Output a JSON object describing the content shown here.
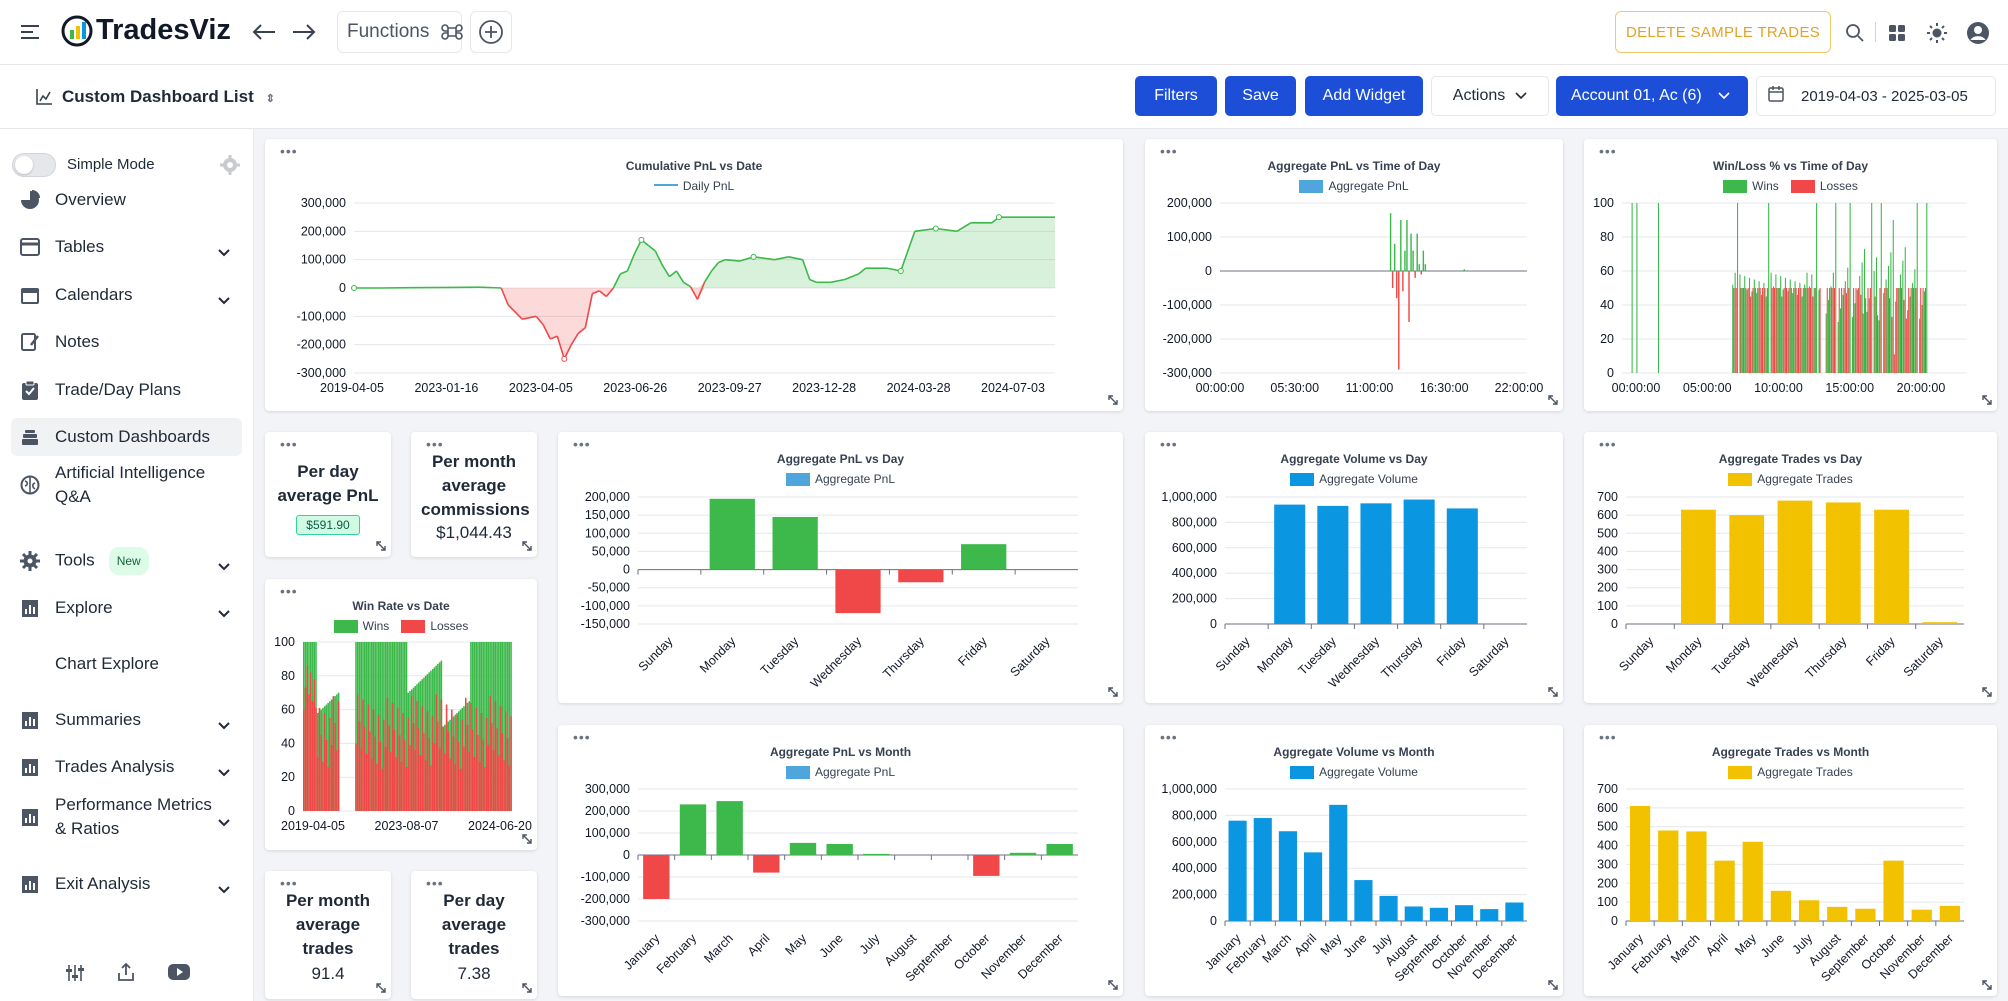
{
  "app": {
    "name": "TradesViz",
    "functions_label": "Functions",
    "delete_label": "DELETE SAMPLE TRADES"
  },
  "toolbar": {
    "title": "Custom Dashboard List",
    "filters": "Filters",
    "save": "Save",
    "add_widget": "Add Widget",
    "actions": "Actions",
    "account": "Account 01, Ac⁣ (6)",
    "date_range": "2019-04-03 - 2025-03-05"
  },
  "colors": {
    "brand_blue": "#1d4ed8",
    "green": "#3cb94a",
    "red": "#f04848",
    "blue": "#0a96e0",
    "yellow": "#f2c200"
  },
  "sidebar": {
    "simple_mode": "Simple Mode",
    "items": [
      {
        "label": "Overview",
        "icon": "pie-chart-icon"
      },
      {
        "label": "Tables",
        "icon": "table-icon"
      },
      {
        "label": "Calendars",
        "icon": "calendar-icon"
      },
      {
        "label": "Notes",
        "icon": "notes-icon"
      },
      {
        "label": "Trade/Day Plans",
        "icon": "clipboard-icon"
      },
      {
        "label": "Custom Dashboards",
        "icon": "layers-icon"
      },
      {
        "label": "Artificial Intelligence Q&A",
        "icon": "brain-icon"
      },
      {
        "label": "Tools",
        "icon": "gear-icon",
        "badge": "New"
      },
      {
        "label": "Explore",
        "icon": "bar-chart-icon"
      },
      {
        "label": "Chart Explore",
        "icon": ""
      },
      {
        "label": "Summaries",
        "icon": "bar-chart-icon"
      },
      {
        "label": "Trades Analysis",
        "icon": "bar-chart-icon"
      },
      {
        "label": "Performance Metrics & Ratios",
        "icon": "bar-chart-icon"
      },
      {
        "label": "Exit Analysis",
        "icon": "bar-chart-icon"
      }
    ]
  },
  "widgets": {
    "per_day_pnl": {
      "label": "Per day average PnL",
      "value": "$591.90"
    },
    "per_month_comm": {
      "label": "Per month average commissions",
      "value": "$1,044.43"
    },
    "per_month_trades": {
      "label": "Per month average trades",
      "value": "91.4"
    },
    "per_day_trades": {
      "label": "Per day average trades",
      "value": "7.38"
    }
  },
  "chart_data": [
    {
      "id": "cum",
      "type": "area",
      "title": "Cumulative PnL vs Date",
      "legend": [
        "Daily PnL"
      ],
      "x_ticks": [
        "2019-04-05",
        "2023-01-16",
        "2023-04-05",
        "2023-06-26",
        "2023-09-27",
        "2023-12-28",
        "2024-03-28",
        "2024-07-03"
      ],
      "y_ticks": [
        "300,000",
        "200,000",
        "100,000",
        "0",
        "-100,000",
        "-200,000",
        "-300,000"
      ],
      "ylim": [
        -300000,
        300000
      ],
      "points": [
        [
          0,
          0
        ],
        [
          4,
          0
        ],
        [
          8,
          1000
        ],
        [
          14,
          2000
        ],
        [
          18,
          3000
        ],
        [
          21,
          0
        ],
        [
          22,
          -60000
        ],
        [
          24,
          -110000
        ],
        [
          26,
          -100000
        ],
        [
          27,
          -130000
        ],
        [
          28,
          -180000
        ],
        [
          29,
          -170000
        ],
        [
          30,
          -250000
        ],
        [
          31,
          -200000
        ],
        [
          32,
          -160000
        ],
        [
          33,
          -140000
        ],
        [
          34,
          -20000
        ],
        [
          35,
          -10000
        ],
        [
          36,
          -30000
        ],
        [
          37,
          0
        ],
        [
          38,
          50000
        ],
        [
          39,
          60000
        ],
        [
          40,
          120000
        ],
        [
          41,
          170000
        ],
        [
          42,
          150000
        ],
        [
          43,
          130000
        ],
        [
          44,
          80000
        ],
        [
          45,
          40000
        ],
        [
          46,
          60000
        ],
        [
          47,
          20000
        ],
        [
          48,
          5000
        ],
        [
          49,
          -40000
        ],
        [
          50,
          20000
        ],
        [
          51,
          60000
        ],
        [
          52,
          90000
        ],
        [
          53,
          100000
        ],
        [
          55,
          95000
        ],
        [
          57,
          110000
        ],
        [
          60,
          100000
        ],
        [
          62,
          110000
        ],
        [
          64,
          100000
        ],
        [
          65,
          30000
        ],
        [
          66,
          20000
        ],
        [
          68,
          20000
        ],
        [
          70,
          30000
        ],
        [
          72,
          50000
        ],
        [
          73,
          70000
        ],
        [
          76,
          70000
        ],
        [
          78,
          60000
        ],
        [
          80,
          200000
        ],
        [
          83,
          210000
        ],
        [
          86,
          200000
        ],
        [
          88,
          230000
        ],
        [
          91,
          230000
        ],
        [
          92,
          250000
        ],
        [
          100,
          250000
        ]
      ]
    },
    {
      "id": "pnl_tod",
      "type": "bar",
      "title": "Aggregate PnL vs Time of Day",
      "legend": [
        "Aggregate PnL"
      ],
      "x_ticks": [
        "00:00:00",
        "05:30:00",
        "11:00:00",
        "16:30:00",
        "22:00:00"
      ],
      "y_ticks": [
        "200,000",
        "100,000",
        "0",
        "-100,000",
        "-200,000",
        "-300,000"
      ],
      "ylim": [
        -300000,
        200000
      ],
      "values": [
        0,
        0,
        0,
        0,
        0,
        0,
        0,
        0,
        0,
        0,
        0,
        0,
        0,
        0,
        0,
        0,
        0,
        0,
        0,
        0,
        0,
        0,
        0,
        0,
        0,
        0,
        0,
        0,
        0,
        0,
        0,
        0,
        0,
        0,
        0,
        0,
        0,
        0,
        0,
        0,
        0,
        0,
        0,
        0,
        0,
        0,
        0,
        0,
        0,
        0,
        0,
        0,
        0,
        0,
        0,
        0,
        0,
        0,
        0,
        0,
        0,
        0,
        0,
        0,
        0,
        0,
        0,
        0,
        0,
        0,
        0,
        0,
        0,
        0,
        0,
        0,
        0,
        0,
        0,
        0,
        0,
        0,
        0,
        170000,
        -50000,
        80000,
        -80000,
        -290000,
        150000,
        -60000,
        60000,
        150000,
        -150000,
        110000,
        60000,
        -20000,
        110000,
        20000,
        -10000,
        60000,
        20000,
        0,
        0,
        0,
        0,
        0,
        0,
        0,
        0,
        0,
        0,
        0,
        0,
        0,
        0,
        0,
        0,
        0,
        0,
        5000,
        0,
        0,
        0,
        0,
        0,
        0,
        0,
        0,
        0,
        0,
        0,
        0,
        0,
        0,
        0,
        0,
        0,
        0,
        0,
        0,
        0,
        0,
        0,
        0,
        0,
        0,
        0,
        0,
        0,
        0
      ]
    },
    {
      "id": "winloss_tod",
      "type": "bar",
      "title": "Win/Loss % vs Time of Day",
      "legend": [
        "Wins",
        "Losses"
      ],
      "x_ticks": [
        "00:00:00",
        "05:00:00",
        "10:00:00",
        "15:00:00",
        "20:00:00"
      ],
      "y_ticks": [
        "100",
        "80",
        "60",
        "40",
        "20",
        "0"
      ],
      "ylim": [
        0,
        100
      ]
    },
    {
      "id": "pnl_day",
      "type": "bar",
      "title": "Aggregate PnL vs Day",
      "legend": [
        "Aggregate PnL"
      ],
      "categories": [
        "Sunday",
        "Monday",
        "Tuesday",
        "Wednesday",
        "Thursday",
        "Friday",
        "Saturday"
      ],
      "values": [
        0,
        195000,
        145000,
        -120000,
        -35000,
        70000,
        0
      ],
      "y_ticks": [
        "200,000",
        "150,000",
        "100,000",
        "50,000",
        "0",
        "-50,000",
        "-100,000",
        "-150,000"
      ],
      "ylim": [
        -150000,
        200000
      ]
    },
    {
      "id": "vol_day",
      "type": "bar",
      "title": "Aggregate Volume vs Day",
      "legend": [
        "Aggregate Volume"
      ],
      "categories": [
        "Sunday",
        "Monday",
        "Tuesday",
        "Wednesday",
        "Thursday",
        "Friday",
        "Saturday"
      ],
      "values": [
        0,
        940000,
        930000,
        950000,
        980000,
        910000,
        0
      ],
      "y_ticks": [
        "1,000,000",
        "800,000",
        "600,000",
        "400,000",
        "200,000",
        "0"
      ],
      "ylim": [
        0,
        1000000
      ]
    },
    {
      "id": "trades_day",
      "type": "bar",
      "title": "Aggregate Trades vs Day",
      "legend": [
        "Aggregate Trades"
      ],
      "categories": [
        "Sunday",
        "Monday",
        "Tuesday",
        "Wednesday",
        "Thursday",
        "Friday",
        "Saturday"
      ],
      "values": [
        0,
        630,
        600,
        680,
        670,
        630,
        10
      ],
      "y_ticks": [
        "700",
        "600",
        "500",
        "400",
        "300",
        "200",
        "100",
        "0"
      ],
      "ylim": [
        0,
        700
      ]
    },
    {
      "id": "winrate_date",
      "type": "bar",
      "title": "Win Rate vs Date",
      "legend": [
        "Wins",
        "Losses"
      ],
      "x_ticks": [
        "2019-04-05",
        "2023-08-07",
        "2024-06-20"
      ],
      "y_ticks": [
        "100",
        "80",
        "60",
        "40",
        "20",
        "0"
      ],
      "ylim": [
        0,
        100
      ]
    },
    {
      "id": "pnl_month",
      "type": "bar",
      "title": "Aggregate PnL vs Month",
      "legend": [
        "Aggregate PnL"
      ],
      "categories": [
        "January",
        "February",
        "March",
        "April",
        "May",
        "June",
        "July",
        "August",
        "September",
        "October",
        "November",
        "December"
      ],
      "values": [
        -200000,
        230000,
        245000,
        -80000,
        55000,
        50000,
        5000,
        0,
        0,
        -95000,
        10000,
        50000
      ],
      "y_ticks": [
        "300,000",
        "200,000",
        "100,000",
        "0",
        "-100,000",
        "-200,000",
        "-300,000"
      ],
      "ylim": [
        -300000,
        300000
      ]
    },
    {
      "id": "vol_month",
      "type": "bar",
      "title": "Aggregate Volume vs Month",
      "legend": [
        "Aggregate Volume"
      ],
      "categories": [
        "January",
        "February",
        "March",
        "April",
        "May",
        "June",
        "July",
        "August",
        "September",
        "October",
        "November",
        "December"
      ],
      "values": [
        760000,
        780000,
        680000,
        520000,
        880000,
        310000,
        190000,
        110000,
        100000,
        120000,
        90000,
        140000
      ],
      "y_ticks": [
        "1,000,000",
        "800,000",
        "600,000",
        "400,000",
        "200,000",
        "0"
      ],
      "ylim": [
        0,
        1000000
      ]
    },
    {
      "id": "trades_month",
      "type": "bar",
      "title": "Aggregate Trades vs Month",
      "legend": [
        "Aggregate Trades"
      ],
      "categories": [
        "January",
        "February",
        "March",
        "April",
        "May",
        "June",
        "July",
        "August",
        "September",
        "October",
        "November",
        "December"
      ],
      "values": [
        610,
        480,
        475,
        320,
        420,
        160,
        110,
        75,
        65,
        320,
        60,
        80
      ],
      "y_ticks": [
        "700",
        "600",
        "500",
        "400",
        "300",
        "200",
        "100",
        "0"
      ],
      "ylim": [
        0,
        700
      ]
    }
  ]
}
